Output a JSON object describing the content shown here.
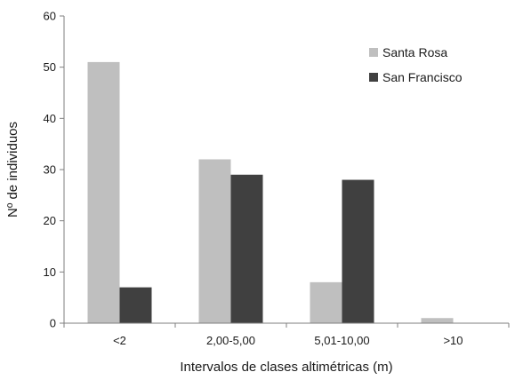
{
  "chart_data": {
    "type": "bar",
    "title": "",
    "xlabel": "Intervalos de clases altimétricas (m)",
    "ylabel": "Nº de individuos",
    "categories": [
      "<2",
      "2,00-5,00",
      "5,01-10,00",
      ">10"
    ],
    "ylim": [
      0,
      60
    ],
    "yticks": [
      "0",
      "10",
      "20",
      "30",
      "40",
      "50",
      "60"
    ],
    "grid": false,
    "legend_position": "top-right",
    "series": [
      {
        "name": "Santa Rosa",
        "color": "#bfbfbf",
        "values": [
          51,
          32,
          8,
          1
        ]
      },
      {
        "name": "San Francisco",
        "color": "#404040",
        "values": [
          7,
          29,
          28,
          0
        ]
      }
    ]
  }
}
